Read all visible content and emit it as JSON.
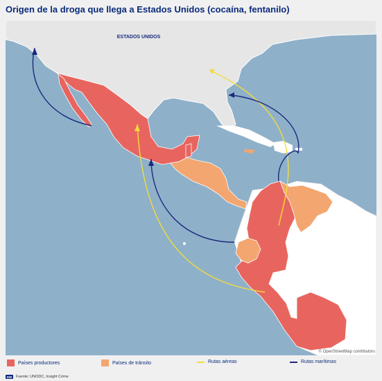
{
  "title": "Origen de la droga que llega a Estados Unidos (cocaína, fentanilo)",
  "map": {
    "country_label": "ESTADOS UNIDOS",
    "attribution": "© OpenStreetMap contributors"
  },
  "colors": {
    "ocean": "#8fb0c9",
    "land": "#ffffff",
    "usa": "#e6e6e6",
    "productores": "#e8655f",
    "transito": "#f3a66f",
    "aereas": "#f2dd3a",
    "maritimas": "#1a2a7c"
  },
  "legend": {
    "productores": "Países productores",
    "transito": "Países de tránsito",
    "aereas": "Rutas aéreas",
    "maritimas": "Rutas marítimas"
  },
  "source": {
    "logo": "DW",
    "text": "Fuente: UNODC, Insight Crime"
  }
}
